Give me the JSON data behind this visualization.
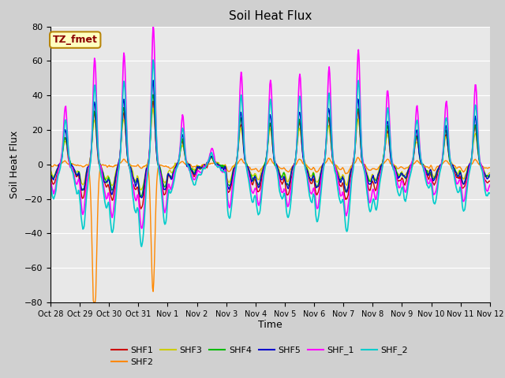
{
  "title": "Soil Heat Flux",
  "ylabel": "Soil Heat Flux",
  "xlabel": "Time",
  "ylim": [
    -80,
    80
  ],
  "fig_facecolor": "#d0d0d0",
  "ax_facecolor": "#e8e8e8",
  "series": {
    "SHF1": {
      "color": "#cc0000",
      "lw": 1.0
    },
    "SHF2": {
      "color": "#ff8800",
      "lw": 1.0
    },
    "SHF3": {
      "color": "#cccc00",
      "lw": 1.0
    },
    "SHF4": {
      "color": "#00bb00",
      "lw": 1.0
    },
    "SHF5": {
      "color": "#0000cc",
      "lw": 1.0
    },
    "SHF_1": {
      "color": "#ff00ff",
      "lw": 1.2
    },
    "SHF_2": {
      "color": "#00cccc",
      "lw": 1.2
    }
  },
  "xtick_labels": [
    "Oct 28",
    "Oct 29",
    "Oct 30",
    "Oct 31",
    "Nov 1",
    "Nov 2",
    "Nov 3",
    "Nov 4",
    "Nov 5",
    "Nov 6",
    "Nov 7",
    "Nov 8",
    "Nov 9",
    "Nov 10",
    "Nov 11",
    "Nov 12"
  ],
  "annotation_text": "TZ_fmet",
  "yticks": [
    -80,
    -60,
    -40,
    -20,
    0,
    20,
    40,
    60,
    80
  ],
  "legend_order": [
    "SHF1",
    "SHF2",
    "SHF3",
    "SHF4",
    "SHF5",
    "SHF_1",
    "SHF_2"
  ]
}
